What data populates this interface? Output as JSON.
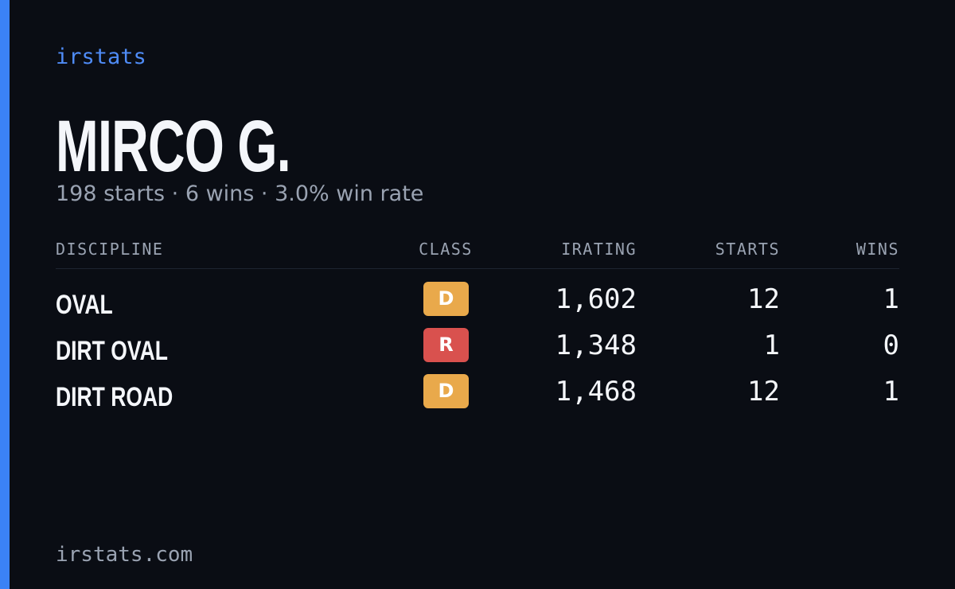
{
  "header": {
    "brand": "irstats",
    "name": "MIRCO G.",
    "subtitle": "198 starts · 6 wins · 3.0% win rate"
  },
  "table": {
    "columns": [
      "DISCIPLINE",
      "CLASS",
      "IRATING",
      "STARTS",
      "WINS"
    ],
    "rows": [
      {
        "discipline": "OVAL",
        "class": "D",
        "class_color": "#e9a94b",
        "irating": "1,602",
        "starts": "12",
        "wins": "1"
      },
      {
        "discipline": "DIRT OVAL",
        "class": "R",
        "class_color": "#d9514e",
        "irating": "1,348",
        "starts": "1",
        "wins": "0"
      },
      {
        "discipline": "DIRT ROAD",
        "class": "D",
        "class_color": "#e9a94b",
        "irating": "1,468",
        "starts": "12",
        "wins": "1"
      }
    ]
  },
  "footer": {
    "site": "irstats.com"
  }
}
